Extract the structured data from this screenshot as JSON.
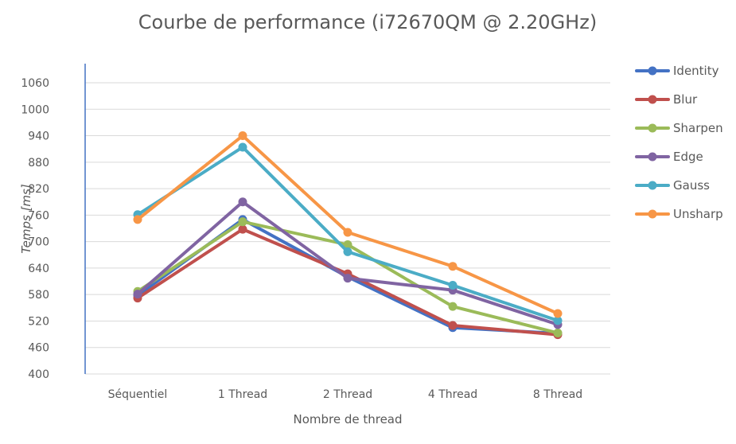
{
  "chart_data": {
    "type": "line",
    "title": "Courbe de performance (i72670QM @ 2.20GHz)",
    "xlabel": "Nombre de thread",
    "ylabel": "Temps [ms]",
    "categories": [
      "Séquentiel",
      "1 Thread",
      "2 Thread",
      "4 Thread",
      "8 Thread"
    ],
    "ylim": [
      400,
      1060
    ],
    "yticks": [
      400,
      460,
      520,
      580,
      640,
      700,
      760,
      820,
      880,
      940,
      1000,
      1060
    ],
    "grid": true,
    "legend_position": "right",
    "series": [
      {
        "name": "Identity",
        "color": "#4472C4",
        "values": [
          578,
          750,
          620,
          505,
          492
        ]
      },
      {
        "name": "Blur",
        "color": "#C0504D",
        "values": [
          572,
          728,
          627,
          510,
          489
        ]
      },
      {
        "name": "Sharpen",
        "color": "#9BBB59",
        "values": [
          587,
          745,
          693,
          553,
          493
        ]
      },
      {
        "name": "Edge",
        "color": "#8064A2",
        "values": [
          581,
          790,
          617,
          590,
          512
        ]
      },
      {
        "name": "Gauss",
        "color": "#4BACC6",
        "values": [
          761,
          914,
          677,
          601,
          521
        ]
      },
      {
        "name": "Unsharp",
        "color": "#F79646",
        "values": [
          750,
          940,
          721,
          644,
          537
        ]
      }
    ]
  }
}
